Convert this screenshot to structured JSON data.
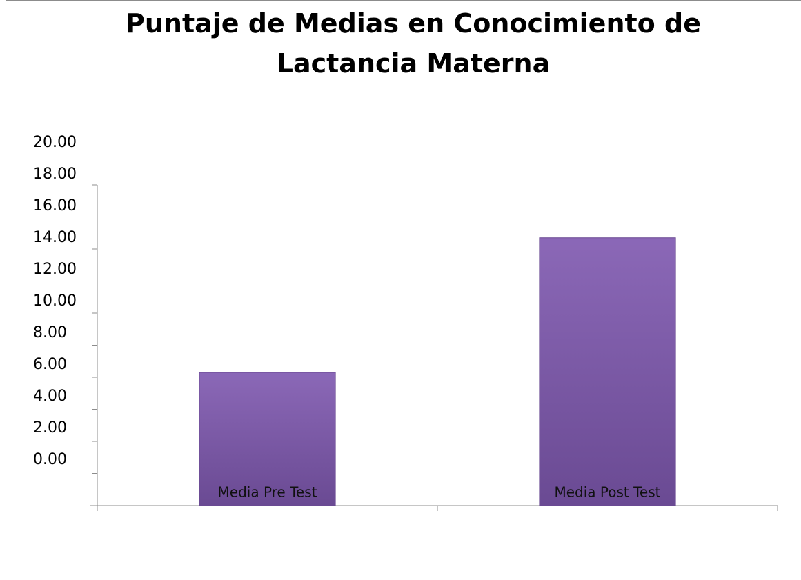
{
  "chart_data": {
    "type": "bar",
    "title_lines": [
      "Puntaje de Medias en Conocimiento de",
      "Lactancia Materna"
    ],
    "categories": [
      "Media Pre Test",
      "Media Post Test"
    ],
    "values": [
      8.3,
      16.7
    ],
    "y_ticks": [
      "20.00",
      "18.00",
      "16.00",
      "14.00",
      "12.00",
      "10.00",
      "8.00",
      "6.00",
      "4.00",
      "2.00",
      "0.00"
    ],
    "ylim": [
      0,
      20
    ],
    "grid": false,
    "legend": "none",
    "bar_color": "#7b5aa6",
    "bar_color_light": "#8b68b7",
    "bar_color_dark": "#6a4a93"
  }
}
